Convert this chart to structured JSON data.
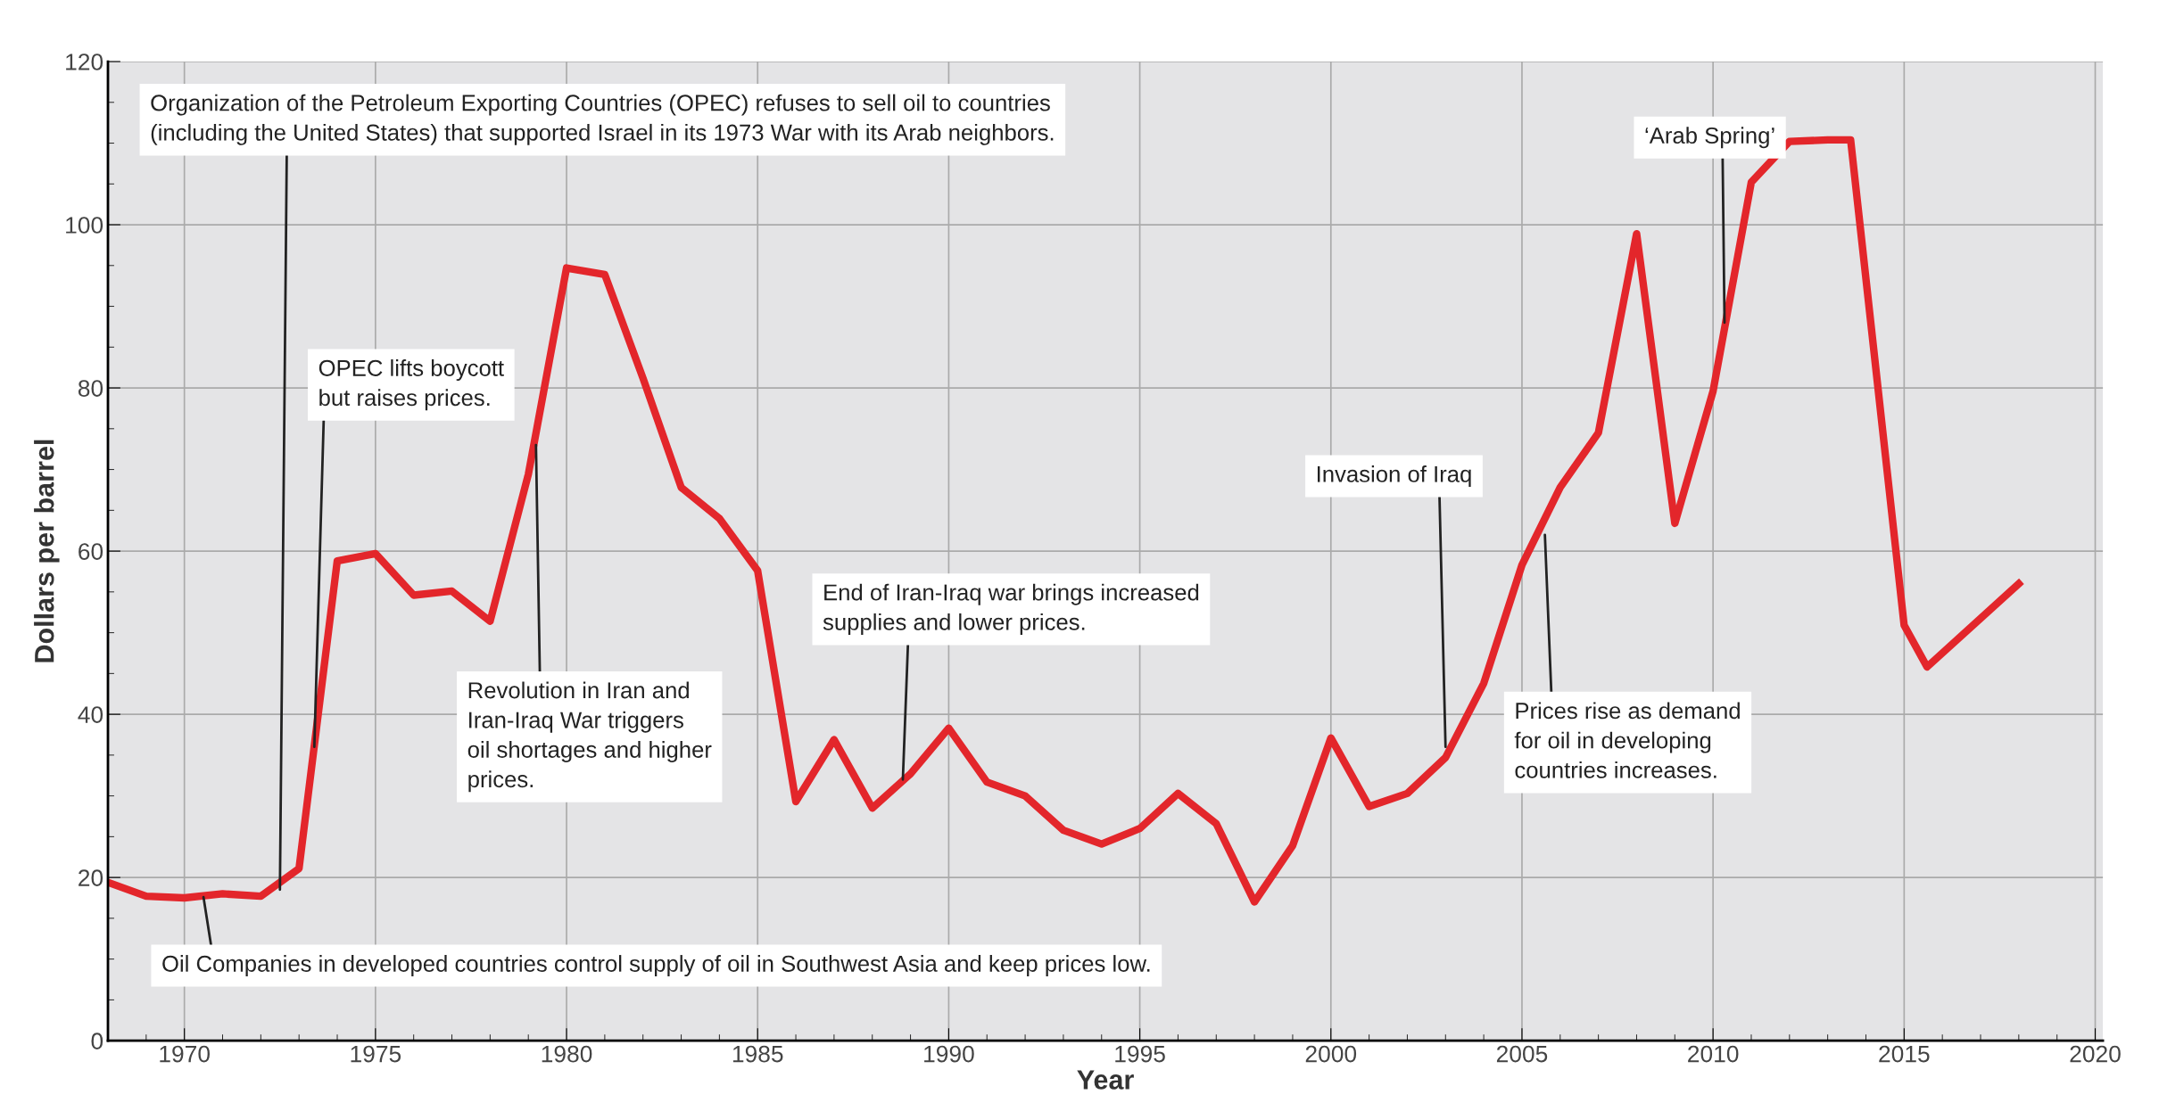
{
  "chart_data": {
    "type": "line",
    "xlabel": "Year",
    "ylabel": "Dollars per barrel",
    "x": [
      1968,
      1969,
      1970,
      1971,
      1972,
      1973,
      1974,
      1975,
      1976,
      1977,
      1978,
      1979,
      1980,
      1981,
      1982,
      1983,
      1984,
      1985,
      1986,
      1987,
      1988,
      1989,
      1990,
      1991,
      1992,
      1993,
      1994,
      1995,
      1996,
      1997,
      1998,
      1999,
      2000,
      2001,
      2002,
      2003,
      2004,
      2005,
      2006,
      2007,
      2008,
      2009,
      2010,
      2011,
      2012,
      2013,
      2013.6,
      2015,
      2015.6,
      2018
    ],
    "series": [
      {
        "color": "#e3262b",
        "values": [
          19.4,
          17.7,
          17.5,
          18.0,
          17.7,
          21.1,
          58.8,
          59.7,
          54.6,
          55.1,
          51.4,
          69.4,
          94.7,
          93.9,
          81.2,
          67.8,
          64.0,
          57.6,
          29.3,
          36.9,
          28.5,
          32.7,
          38.3,
          31.7,
          30.0,
          25.8,
          24.1,
          26.0,
          30.3,
          26.6,
          17.0,
          23.9,
          37.1,
          28.7,
          30.3,
          34.7,
          43.8,
          58.3,
          67.8,
          74.5,
          98.9,
          63.4,
          79.6,
          105.2,
          110.2,
          110.4,
          110.4,
          50.9,
          45.8,
          56.0
        ]
      }
    ],
    "xlim": [
      1968,
      2020.2
    ],
    "xticks": [
      1970,
      1975,
      1980,
      1985,
      1990,
      1995,
      2000,
      2005,
      2010,
      2015,
      2020
    ],
    "ylim": [
      0,
      120
    ],
    "yticks": [
      0,
      20,
      40,
      60,
      80,
      100,
      120
    ],
    "grid": true,
    "marker": "none",
    "line_style": "solid",
    "legend": false,
    "annotations": [
      {
        "text": "Organization of the Petroleum Exporting Countries (OPEC) refuses to sell oil to countries\n(including the United States) that supported Israel in its 1973 War with its Arab neighbors.",
        "x": 1972.5,
        "y": 18.5
      },
      {
        "text": "OPEC lifts boycott\nbut raises prices.",
        "x": 1973.4,
        "y": 36
      },
      {
        "text": "Revolution in Iran and\nIran-Iraq War triggers\noil shortages and higher\nprices.",
        "x": 1979.2,
        "y": 73
      },
      {
        "text": "End of Iran-Iraq war brings increased\nsupplies and lower prices.",
        "x": 1988.8,
        "y": 32
      },
      {
        "text": "Invasion of Iraq",
        "x": 2003,
        "y": 36
      },
      {
        "text": "Prices rise as demand\nfor oil in developing\ncountries increases.",
        "x": 2005.6,
        "y": 62
      },
      {
        "text": "‘Arab Spring’",
        "x": 2010.3,
        "y": 88
      },
      {
        "text": "Oil Companies in developed countries control supply of oil in Southwest Asia and keep prices low.",
        "x": 1970.5,
        "y": 17.6
      }
    ]
  }
}
